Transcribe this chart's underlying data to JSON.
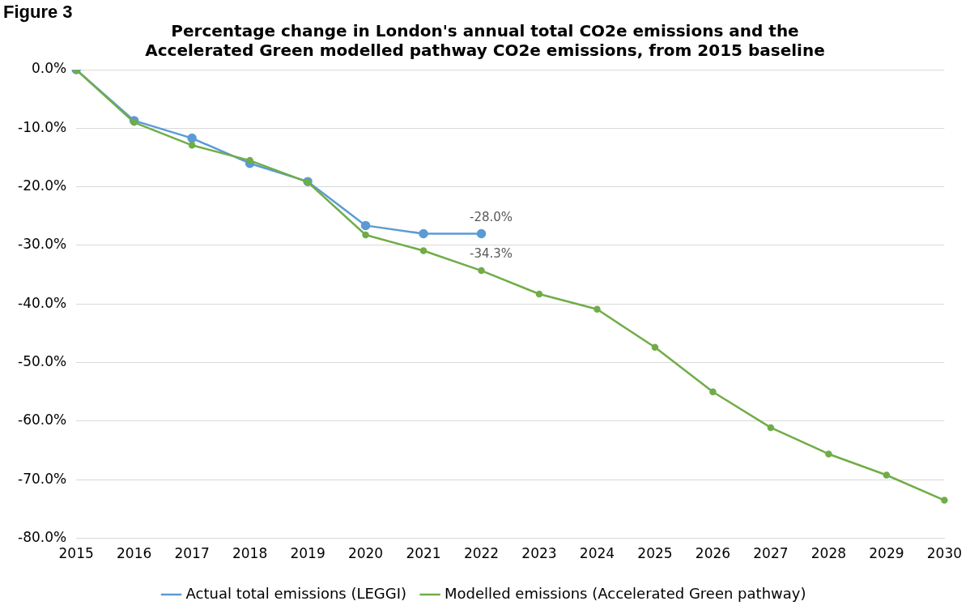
{
  "chart_data": {
    "type": "line",
    "title": "Percentage change in London's annual total CO2e emissions and the Accelerated Green modelled pathway CO2e emissions, from 2015 baseline",
    "annotations": [
      "Figure 3"
    ],
    "categories": [
      "2015",
      "2016",
      "2017",
      "2018",
      "2019",
      "2020",
      "2021",
      "2022",
      "2023",
      "2024",
      "2025",
      "2026",
      "2027",
      "2028",
      "2029",
      "2030"
    ],
    "series": [
      {
        "name": "Actual total emissions (LEGGI)",
        "color": "#5b9bd5",
        "values": [
          0,
          -8.7,
          -11.7,
          -16.0,
          -19.1,
          -26.6,
          -28.0,
          -28.0,
          null,
          null,
          null,
          null,
          null,
          null,
          null,
          null
        ],
        "value_labels": [
          null,
          null,
          null,
          null,
          null,
          null,
          null,
          "-28.0%",
          null,
          null,
          null,
          null,
          null,
          null,
          null,
          null
        ]
      },
      {
        "name": "Modelled emissions (Accelerated Green pathway)",
        "color": "#70ad47",
        "values": [
          0,
          -9.0,
          -12.9,
          -15.5,
          -19.2,
          -28.2,
          -30.9,
          -34.3,
          -38.3,
          -40.9,
          -47.4,
          -55.0,
          -61.1,
          -65.6,
          -69.2,
          -73.5
        ],
        "value_labels": [
          null,
          null,
          null,
          null,
          null,
          null,
          null,
          "-34.3%",
          null,
          null,
          null,
          null,
          null,
          null,
          null,
          null
        ]
      }
    ],
    "ylim": [
      -80,
      0
    ],
    "yticks": [
      {
        "value": -80,
        "label": "-80.0%"
      },
      {
        "value": -70,
        "label": "-70.0%"
      },
      {
        "value": -60,
        "label": "-60.0%"
      },
      {
        "value": -50,
        "label": "-50.0%"
      },
      {
        "value": -40,
        "label": "-40.0%"
      },
      {
        "value": -30,
        "label": "-30.0%"
      },
      {
        "value": -20,
        "label": "-20.0%"
      },
      {
        "value": -10,
        "label": "-10.0%"
      },
      {
        "value": 0,
        "label": "0.0%"
      }
    ],
    "grid": "y",
    "legend": "bottom",
    "marker": "circle",
    "line_style": "solid"
  }
}
